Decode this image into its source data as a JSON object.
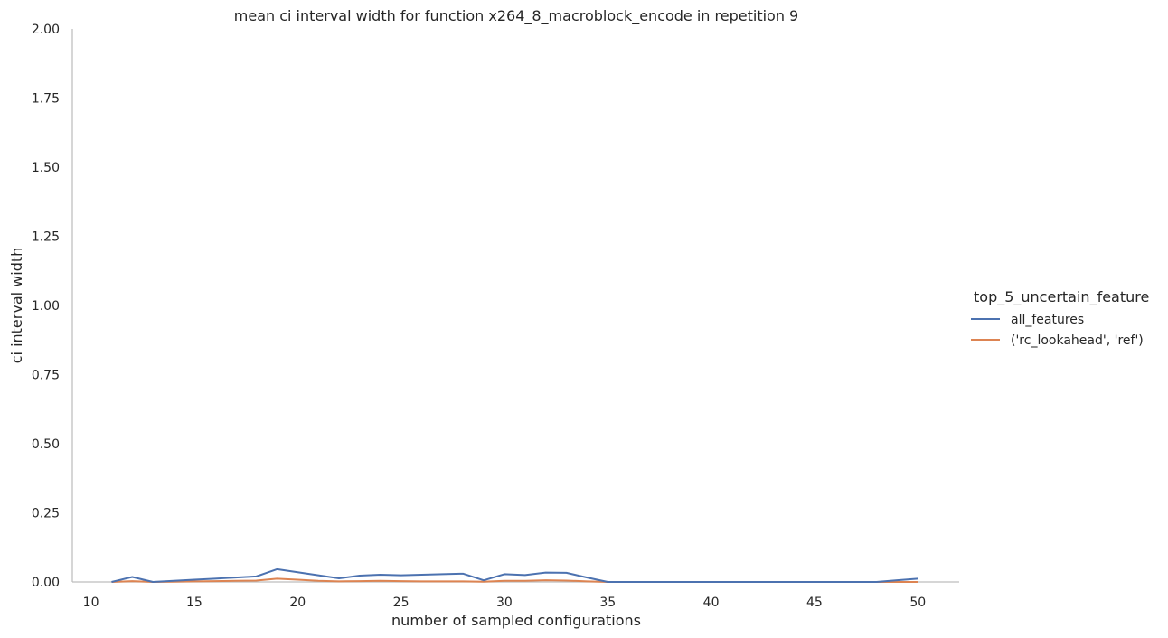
{
  "chart_data": {
    "type": "line",
    "title": "mean ci interval width for function x264_8_macroblock_encode in repetition 9",
    "xlabel": "number of sampled configurations",
    "ylabel": "ci interval width",
    "xlim": [
      9.1,
      52
    ],
    "ylim": [
      0,
      2
    ],
    "xticks": [
      10,
      15,
      20,
      25,
      30,
      35,
      40,
      45,
      50
    ],
    "yticks": [
      0.0,
      0.25,
      0.5,
      0.75,
      1.0,
      1.25,
      1.5,
      1.75,
      2.0
    ],
    "xtick_labels": [
      "10",
      "15",
      "20",
      "25",
      "30",
      "35",
      "40",
      "45",
      "50"
    ],
    "ytick_labels": [
      "0.00",
      "0.25",
      "0.50",
      "0.75",
      "1.00",
      "1.25",
      "1.50",
      "1.75",
      "2.00"
    ],
    "grid": false,
    "legend_title": "top_5_uncertain_feature",
    "legend_position": "right",
    "series": [
      {
        "name": "all_features",
        "color": "#4c72b0",
        "x": [
          11,
          12,
          13,
          14,
          15,
          16,
          17,
          18,
          19,
          20,
          21,
          22,
          23,
          24,
          25,
          26,
          27,
          28,
          29,
          30,
          31,
          32,
          33,
          34,
          35,
          36,
          37,
          38,
          39,
          40,
          41,
          42,
          43,
          44,
          45,
          46,
          47,
          48,
          49,
          50
        ],
        "y": [
          0.0,
          0.018,
          0.0,
          0.004,
          0.008,
          0.012,
          0.016,
          0.02,
          0.046,
          0.035,
          0.024,
          0.013,
          0.023,
          0.026,
          0.024,
          0.026,
          0.028,
          0.03,
          0.006,
          0.028,
          0.025,
          0.034,
          0.033,
          0.016,
          0.0,
          0.0,
          0.0,
          0.0,
          0.0,
          0.0,
          0.0,
          0.0,
          0.0,
          0.0,
          0.0,
          0.0,
          0.0,
          0.0,
          0.006,
          0.012
        ]
      },
      {
        "name": "('rc_lookahead', 'ref')",
        "color": "#dd8452",
        "x": [
          11,
          12,
          13,
          14,
          15,
          16,
          17,
          18,
          19,
          20,
          21,
          22,
          23,
          24,
          25,
          26,
          27,
          28,
          29,
          30,
          31,
          32,
          33,
          34,
          35,
          36,
          37,
          38,
          39,
          40,
          41,
          42,
          43,
          44,
          45,
          46,
          47,
          48,
          49,
          50
        ],
        "y": [
          0.0,
          0.003,
          0.0,
          0.001,
          0.002,
          0.003,
          0.004,
          0.005,
          0.012,
          0.008,
          0.004,
          0.002,
          0.003,
          0.004,
          0.003,
          0.002,
          0.002,
          0.002,
          0.001,
          0.004,
          0.004,
          0.006,
          0.005,
          0.002,
          0.0,
          0.0,
          0.0,
          0.0,
          0.0,
          0.0,
          0.0,
          0.0,
          0.0,
          0.0,
          0.0,
          0.0,
          0.0,
          0.0,
          0.0,
          0.0
        ]
      }
    ]
  }
}
